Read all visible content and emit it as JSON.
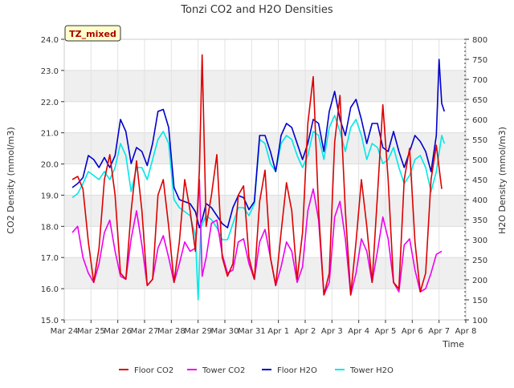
{
  "chart_data": {
    "type": "line",
    "title": "Tonzi CO2 and H2O Densities",
    "site_label": "TZ_mixed",
    "xlabel": "Time",
    "ylabel_left": "CO2 Density (mmol/m3)",
    "ylabel_right": "H2O Density (mmol/m3)",
    "x_ticks": [
      "Mar 24",
      "Mar 25",
      "Mar 26",
      "Mar 27",
      "Mar 28",
      "Mar 29",
      "Mar 30",
      "Mar 31",
      "Apr 1",
      "Apr 2",
      "Apr 3",
      "Apr 4",
      "Apr 5",
      "Apr 6",
      "Apr 7",
      "Apr 8"
    ],
    "y_left_ticks": [
      "15.0",
      "16.0",
      "17.0",
      "18.0",
      "19.0",
      "20.0",
      "21.0",
      "22.0",
      "23.0",
      "24.0"
    ],
    "y_right_ticks": [
      "100",
      "150",
      "200",
      "250",
      "300",
      "350",
      "400",
      "450",
      "500",
      "550",
      "600",
      "650",
      "700",
      "750",
      "800"
    ],
    "ylim_left": [
      15,
      24
    ],
    "ylim_right": [
      100,
      800
    ],
    "xlim_days": [
      0,
      15
    ],
    "grid": true,
    "legend_position": "bottom",
    "series": [
      {
        "name": "Floor CO2",
        "axis": "left",
        "color": "#dd0000",
        "x": [
          0.3,
          0.5,
          0.7,
          0.9,
          1.1,
          1.3,
          1.5,
          1.7,
          1.9,
          2.1,
          2.3,
          2.5,
          2.7,
          2.9,
          3.1,
          3.3,
          3.5,
          3.7,
          3.9,
          4.1,
          4.3,
          4.5,
          4.7,
          4.9,
          5.05,
          5.15,
          5.3,
          5.5,
          5.7,
          5.9,
          6.1,
          6.3,
          6.5,
          6.7,
          6.9,
          7.1,
          7.3,
          7.5,
          7.7,
          7.9,
          8.1,
          8.3,
          8.5,
          8.7,
          8.9,
          9.1,
          9.3,
          9.5,
          9.7,
          9.9,
          10.1,
          10.3,
          10.5,
          10.7,
          10.9,
          11.1,
          11.3,
          11.5,
          11.7,
          11.9,
          12.1,
          12.3,
          12.5,
          12.7,
          12.9,
          13.1,
          13.3,
          13.5,
          13.7,
          13.9,
          14.1
        ],
        "y": [
          19.5,
          19.6,
          19.2,
          17.5,
          16.2,
          17.3,
          19.5,
          20.3,
          19.0,
          16.5,
          16.3,
          18.5,
          20.1,
          18.5,
          16.1,
          16.3,
          19.0,
          19.5,
          18.0,
          16.2,
          17.5,
          19.5,
          18.5,
          17.2,
          19.8,
          23.5,
          18.0,
          19.0,
          20.3,
          17.0,
          16.4,
          16.8,
          19.0,
          19.3,
          17.0,
          16.3,
          18.8,
          19.8,
          17.0,
          16.1,
          17.8,
          19.4,
          18.5,
          16.3,
          17.8,
          21.3,
          22.8,
          18.5,
          15.8,
          16.5,
          20.7,
          22.2,
          18.5,
          15.8,
          17.5,
          19.5,
          18.0,
          16.2,
          19.0,
          21.9,
          19.5,
          16.2,
          16.0,
          19.5,
          20.5,
          17.5,
          15.9,
          16.5,
          19.5,
          20.6,
          19.2
        ]
      },
      {
        "name": "Tower CO2",
        "axis": "left",
        "color": "#ee00ee",
        "x": [
          0.3,
          0.5,
          0.7,
          0.9,
          1.1,
          1.3,
          1.5,
          1.7,
          1.9,
          2.1,
          2.3,
          2.5,
          2.7,
          2.9,
          3.1,
          3.3,
          3.5,
          3.7,
          3.9,
          4.1,
          4.3,
          4.5,
          4.7,
          4.9,
          5.05,
          5.15,
          5.3,
          5.5,
          5.7,
          5.9,
          6.1,
          6.3,
          6.5,
          6.7,
          6.9,
          7.1,
          7.3,
          7.5,
          7.7,
          7.9,
          8.1,
          8.3,
          8.5,
          8.7,
          8.9,
          9.1,
          9.3,
          9.5,
          9.7,
          9.9,
          10.1,
          10.3,
          10.5,
          10.7,
          10.9,
          11.1,
          11.3,
          11.5,
          11.7,
          11.9,
          12.1,
          12.3,
          12.5,
          12.7,
          12.9,
          13.1,
          13.3,
          13.5,
          13.7,
          13.9,
          14.1
        ],
        "y": [
          17.8,
          18.0,
          17.0,
          16.5,
          16.2,
          16.8,
          17.8,
          18.2,
          17.2,
          16.4,
          16.3,
          17.6,
          18.5,
          17.4,
          16.1,
          16.3,
          17.3,
          17.7,
          17.0,
          16.2,
          16.8,
          17.5,
          17.2,
          17.3,
          19.5,
          16.4,
          17.0,
          18.1,
          18.2,
          17.1,
          16.5,
          16.6,
          17.5,
          17.6,
          16.8,
          16.3,
          17.5,
          17.9,
          17.0,
          16.1,
          16.7,
          17.5,
          17.2,
          16.2,
          16.7,
          18.5,
          19.2,
          18.2,
          15.8,
          16.2,
          18.3,
          18.8,
          17.6,
          15.8,
          16.5,
          17.6,
          17.2,
          16.2,
          17.2,
          18.3,
          17.6,
          16.2,
          15.9,
          17.4,
          17.6,
          16.6,
          15.9,
          16.0,
          16.5,
          17.1,
          17.2
        ]
      },
      {
        "name": "Floor H2O",
        "axis": "right",
        "color": "#0000cc",
        "x": [
          0.3,
          0.5,
          0.7,
          0.9,
          1.1,
          1.3,
          1.5,
          1.7,
          1.9,
          2.1,
          2.3,
          2.5,
          2.7,
          2.9,
          3.1,
          3.3,
          3.5,
          3.7,
          3.9,
          4.1,
          4.3,
          4.5,
          4.7,
          4.9,
          5.05,
          5.15,
          5.3,
          5.5,
          5.7,
          5.9,
          6.1,
          6.3,
          6.5,
          6.7,
          6.9,
          7.1,
          7.3,
          7.5,
          7.7,
          7.9,
          8.1,
          8.3,
          8.5,
          8.7,
          8.9,
          9.1,
          9.3,
          9.5,
          9.7,
          9.9,
          10.1,
          10.3,
          10.5,
          10.7,
          10.9,
          11.1,
          11.3,
          11.5,
          11.7,
          11.9,
          12.1,
          12.3,
          12.5,
          12.7,
          12.9,
          13.1,
          13.3,
          13.5,
          13.7,
          13.9,
          14.0,
          14.1,
          14.2
        ],
        "y": [
          430,
          440,
          455,
          510,
          500,
          480,
          505,
          480,
          510,
          600,
          570,
          490,
          530,
          520,
          485,
          540,
          620,
          625,
          580,
          430,
          400,
          395,
          390,
          370,
          330,
          350,
          390,
          380,
          360,
          340,
          330,
          380,
          410,
          405,
          375,
          395,
          560,
          560,
          520,
          470,
          560,
          590,
          580,
          540,
          500,
          540,
          600,
          590,
          520,
          620,
          670,
          600,
          560,
          630,
          650,
          600,
          540,
          590,
          590,
          530,
          520,
          570,
          520,
          480,
          520,
          560,
          545,
          520,
          470,
          560,
          750,
          640,
          620
        ]
      },
      {
        "name": "Tower H2O",
        "axis": "right",
        "color": "#00e8e8",
        "x": [
          0.3,
          0.5,
          0.7,
          0.9,
          1.1,
          1.3,
          1.5,
          1.7,
          1.9,
          2.1,
          2.3,
          2.5,
          2.7,
          2.9,
          3.1,
          3.3,
          3.5,
          3.7,
          3.9,
          4.1,
          4.3,
          4.5,
          4.7,
          4.9,
          5.0,
          5.1,
          5.3,
          5.5,
          5.7,
          5.9,
          6.1,
          6.3,
          6.5,
          6.7,
          6.9,
          7.1,
          7.3,
          7.5,
          7.7,
          7.9,
          8.1,
          8.3,
          8.5,
          8.7,
          8.9,
          9.1,
          9.3,
          9.5,
          9.7,
          9.9,
          10.1,
          10.3,
          10.5,
          10.7,
          10.9,
          11.1,
          11.3,
          11.5,
          11.7,
          11.9,
          12.1,
          12.3,
          12.5,
          12.7,
          12.9,
          13.1,
          13.3,
          13.5,
          13.7,
          13.9,
          14.1,
          14.2
        ],
        "y": [
          405,
          415,
          440,
          470,
          460,
          450,
          470,
          450,
          480,
          540,
          510,
          420,
          480,
          480,
          450,
          500,
          550,
          570,
          540,
          400,
          380,
          370,
          360,
          310,
          150,
          330,
          360,
          350,
          330,
          300,
          300,
          340,
          380,
          380,
          360,
          390,
          550,
          540,
          490,
          470,
          540,
          560,
          550,
          510,
          480,
          510,
          570,
          560,
          500,
          580,
          610,
          570,
          520,
          580,
          600,
          560,
          500,
          540,
          530,
          490,
          500,
          530,
          480,
          440,
          460,
          500,
          510,
          480,
          420,
          470,
          560,
          540
        ]
      }
    ]
  }
}
